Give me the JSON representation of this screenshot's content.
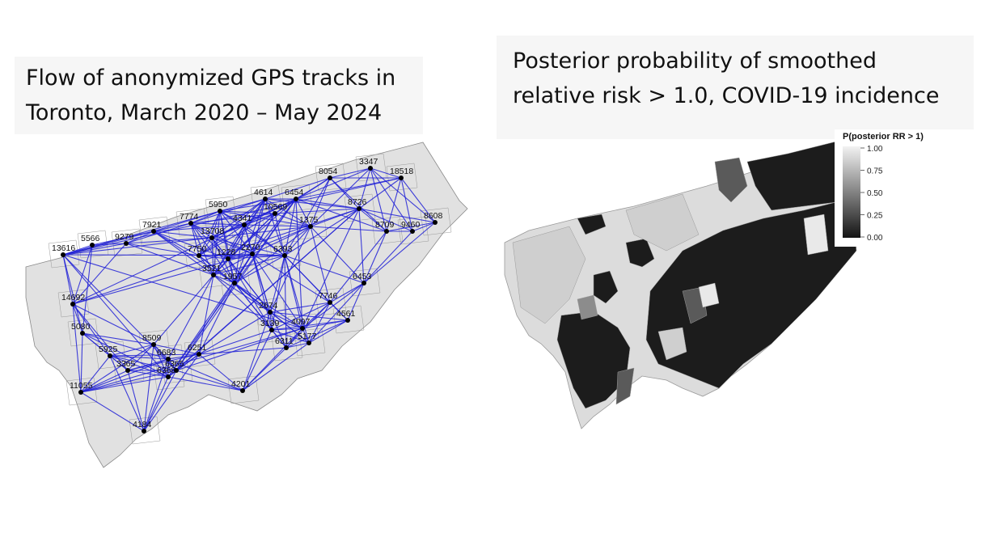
{
  "left_panel": {
    "title_line1": "Flow of anonymized GPS tracks in",
    "title_line2": "Toronto, March 2020 – May 2024",
    "edge_color": "#1f1fd6",
    "node_color": "#000000",
    "land_color": "#e1e1e1",
    "node_labels": [
      "13616",
      "5566",
      "9279",
      "7921",
      "7774",
      "5950",
      "4614",
      "6454",
      "8054",
      "3347",
      "18518",
      "8608",
      "9460",
      "8709",
      "8726",
      "1375",
      "10569",
      "4341",
      "13708",
      "7750",
      "6393",
      "2270",
      "1228",
      "3521",
      "1957",
      "14692",
      "5080",
      "5925",
      "11055",
      "3365",
      "6368",
      "4184",
      "4201",
      "8509",
      "6251",
      "6365",
      "5177",
      "4561",
      "6453",
      "7746",
      "4097",
      "6311",
      "3139",
      "2674",
      "6683"
    ]
  },
  "right_panel": {
    "title_line1": "Posterior probability of smoothed",
    "title_line2": "relative risk > 1.0,  COVID-19 incidence",
    "legend": {
      "title": "P(posterior RR > 1)",
      "ticks": [
        "1.00",
        "0.75",
        "0.50",
        "0.25",
        "0.00"
      ],
      "color_high": "#f2f2f2",
      "color_low": "#141414"
    }
  }
}
